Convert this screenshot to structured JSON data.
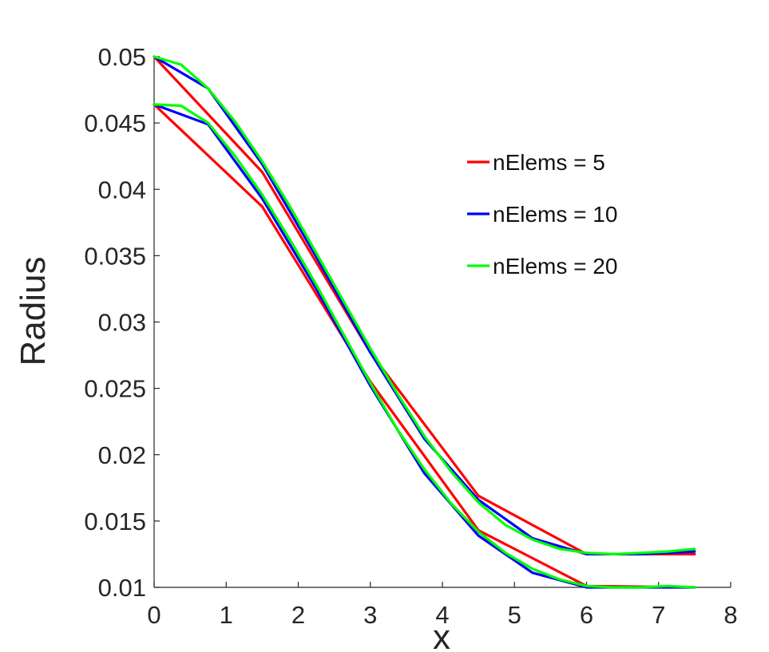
{
  "chart_data": {
    "type": "line",
    "title": "",
    "xlabel": "x",
    "ylabel": "Radius",
    "xlim": [
      0,
      8
    ],
    "ylim": [
      0.01,
      0.05
    ],
    "xticks": [
      "0",
      "1",
      "2",
      "3",
      "4",
      "5",
      "6",
      "7",
      "8"
    ],
    "yticks": [
      "0.01",
      "0.015",
      "0.02",
      "0.025",
      "0.03",
      "0.035",
      "0.04",
      "0.045",
      "0.05"
    ],
    "grid": false,
    "legend_position": "top-right",
    "series": [
      {
        "name": "nElems = 5",
        "color": "#ff0000",
        "curves": [
          {
            "x": [
              0,
              1.5,
              3,
              4.5,
              6,
              7.5
            ],
            "y": [
              0.05,
              0.0413,
              0.0277,
              0.0169,
              0.0125,
              0.0125
            ]
          },
          {
            "x": [
              0,
              1.5,
              3,
              4.5,
              6,
              7.5
            ],
            "y": [
              0.0464,
              0.0387,
              0.0255,
              0.0143,
              0.0101,
              0.01
            ]
          }
        ]
      },
      {
        "name": "nElems = 10",
        "color": "#0000ff",
        "curves": [
          {
            "x": [
              0,
              0.75,
              1.5,
              2.25,
              3,
              3.75,
              4.5,
              5.25,
              6,
              6.75,
              7.5
            ],
            "y": [
              0.05,
              0.0476,
              0.0419,
              0.0349,
              0.0277,
              0.0212,
              0.0166,
              0.0137,
              0.0125,
              0.0125,
              0.0127
            ]
          },
          {
            "x": [
              0,
              0.75,
              1.5,
              2.25,
              3,
              3.75,
              4.5,
              5.25,
              6,
              6.75,
              7.5
            ],
            "y": [
              0.0464,
              0.0449,
              0.0393,
              0.0325,
              0.0252,
              0.0186,
              0.0139,
              0.0111,
              0.01,
              0.01,
              0.01
            ]
          }
        ]
      },
      {
        "name": "nElems = 20",
        "color": "#00ff00",
        "curves": [
          {
            "x": [
              0,
              0.375,
              0.75,
              1.125,
              1.5,
              1.875,
              2.25,
              2.625,
              3,
              3.375,
              3.75,
              4.125,
              4.5,
              4.875,
              5.25,
              5.625,
              6,
              6.375,
              6.75,
              7.125,
              7.5
            ],
            "y": [
              0.05,
              0.0494,
              0.0476,
              0.0451,
              0.0421,
              0.0388,
              0.0352,
              0.0316,
              0.028,
              0.0246,
              0.0214,
              0.0187,
              0.0164,
              0.0147,
              0.0136,
              0.0129,
              0.0126,
              0.0125,
              0.0126,
              0.0127,
              0.0129
            ]
          },
          {
            "x": [
              0,
              0.375,
              0.75,
              1.125,
              1.5,
              1.875,
              2.25,
              2.625,
              3,
              3.375,
              3.75,
              4.125,
              4.5,
              4.875,
              5.25,
              5.625,
              6,
              6.375,
              6.75,
              7.125,
              7.5
            ],
            "y": [
              0.0464,
              0.0463,
              0.045,
              0.0425,
              0.0396,
              0.0363,
              0.0328,
              0.0291,
              0.0254,
              0.0219,
              0.0189,
              0.0163,
              0.0142,
              0.0126,
              0.0114,
              0.0106,
              0.0101,
              0.01,
              0.01,
              0.0101,
              0.01
            ]
          }
        ]
      }
    ]
  }
}
